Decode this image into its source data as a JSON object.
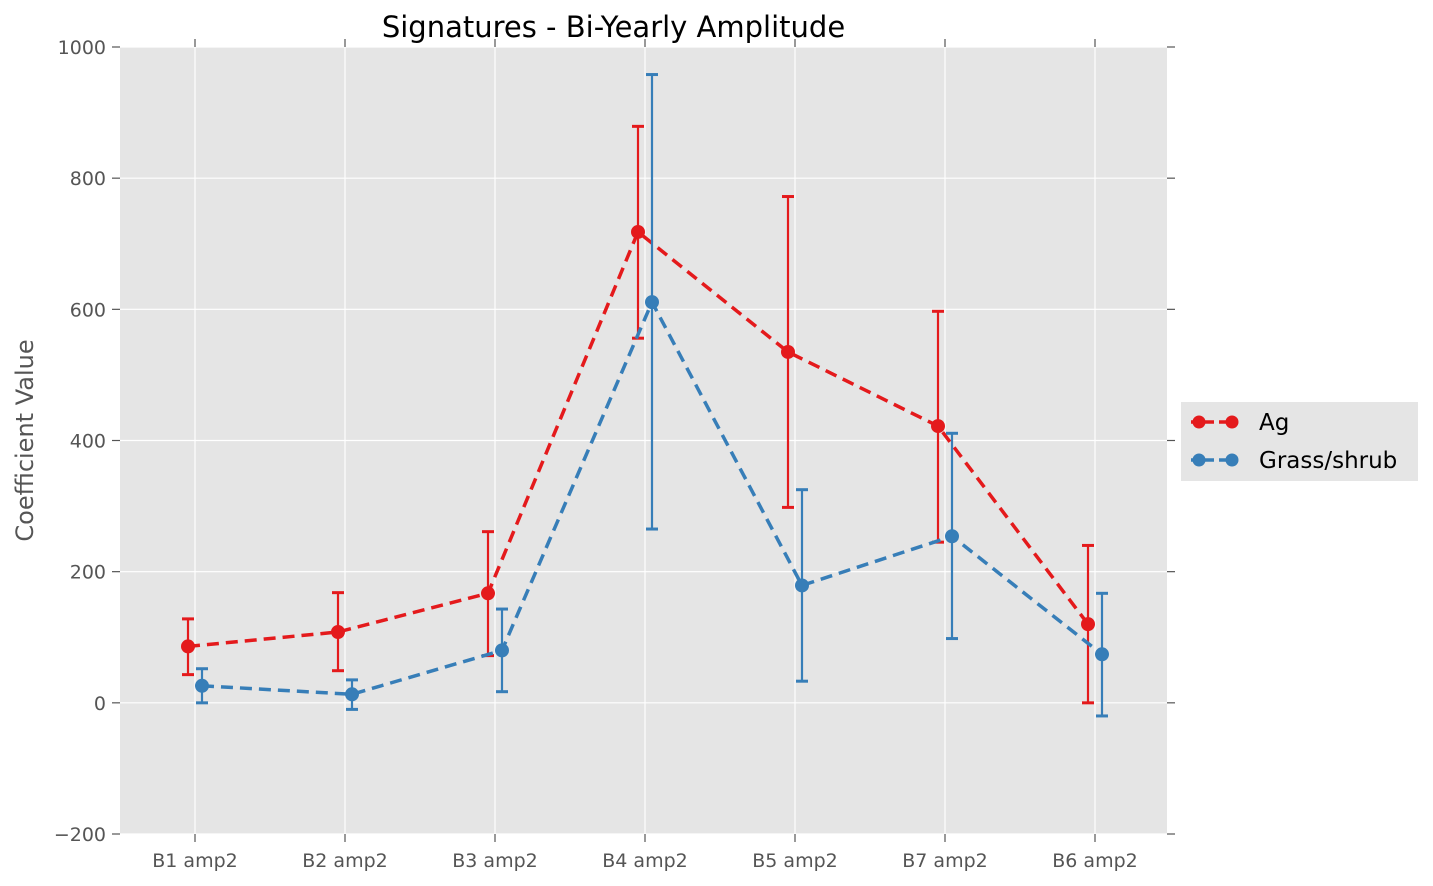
{
  "chart_data": {
    "type": "line",
    "title": "Signatures - Bi-Yearly Amplitude",
    "xlabel": "",
    "ylabel": "Coefficient Value",
    "categories": [
      "B1 amp2",
      "B2 amp2",
      "B3 amp2",
      "B4 amp2",
      "B5 amp2",
      "B7 amp2",
      "B6 amp2"
    ],
    "ylim": [
      -200,
      1000
    ],
    "yticks": [
      -200,
      0,
      200,
      400,
      600,
      800,
      1000
    ],
    "ytick_labels": [
      "−200",
      "0",
      "200",
      "400",
      "600",
      "800",
      "1000"
    ],
    "grid": true,
    "legend_position": "outside-right",
    "series": [
      {
        "name": "Ag",
        "color": "#e41a1c",
        "values": [
          86,
          108,
          167,
          718,
          535,
          422,
          120
        ],
        "err_low": [
          43,
          49,
          72,
          556,
          298,
          245,
          0
        ],
        "err_high": [
          128,
          168,
          261,
          879,
          772,
          597,
          240
        ]
      },
      {
        "name": "Grass/shrub",
        "color": "#377eb8",
        "values": [
          26,
          13,
          80,
          611,
          179,
          254,
          74
        ],
        "err_low": [
          0,
          -10,
          17,
          265,
          33,
          98,
          -20
        ],
        "err_high": [
          52,
          35,
          143,
          958,
          325,
          411,
          167
        ]
      }
    ]
  }
}
